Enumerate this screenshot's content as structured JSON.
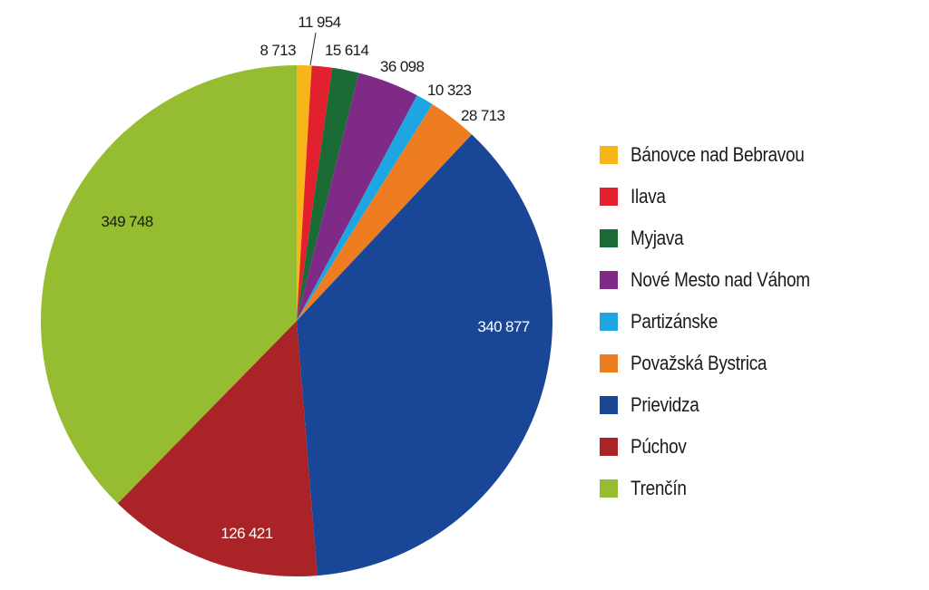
{
  "chart_data": {
    "type": "pie",
    "title": "",
    "start_angle": "12 o'clock",
    "direction": "clockwise",
    "categories": [
      "Bánovce nad Bebravou",
      "Ilava",
      "Myjava",
      "Nové Mesto nad Váhom",
      "Partizánske",
      "Považská Bystrica",
      "Prievidza",
      "Púchov",
      "Trenčín"
    ],
    "values": [
      8713,
      11954,
      15614,
      36098,
      10323,
      28713,
      340877,
      126421,
      349748
    ],
    "value_labels": [
      "8 713",
      "11 954",
      "15 614",
      "36 098",
      "10 323",
      "28 713",
      "340 877",
      "126 421",
      "349 748"
    ],
    "colors": [
      "#f7b519",
      "#e3202d",
      "#1a6b36",
      "#7f2a86",
      "#1ea6e2",
      "#ee7d22",
      "#1a4697",
      "#aa2327",
      "#96bd31"
    ],
    "legend_position": "right"
  },
  "legend": {
    "items": [
      {
        "label": "Bánovce nad Bebravou",
        "color": "#f7b519"
      },
      {
        "label": "Ilava",
        "color": "#e3202d"
      },
      {
        "label": "Myjava",
        "color": "#1a6b36"
      },
      {
        "label": "Nové Mesto nad Váhom",
        "color": "#7f2a86"
      },
      {
        "label": "Partizánske",
        "color": "#1ea6e2"
      },
      {
        "label": "Považská Bystrica",
        "color": "#ee7d22"
      },
      {
        "label": "Prievidza",
        "color": "#1a4697"
      },
      {
        "label": "Púchov",
        "color": "#aa2327"
      },
      {
        "label": "Trenčín",
        "color": "#96bd31"
      }
    ]
  }
}
